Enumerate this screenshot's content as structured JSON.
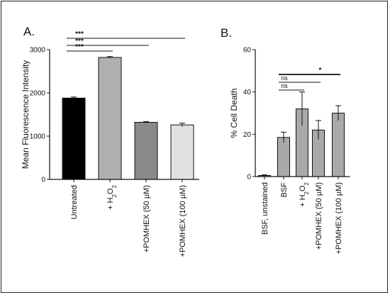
{
  "chart_data": [
    {
      "type": "bar",
      "panel": "A.",
      "ylabel": "Mean Fluorescence Intensity",
      "ylim": [
        0,
        3000
      ],
      "yticks": [
        0,
        1000,
        2000,
        3000
      ],
      "categories": [
        "Untreated",
        "+ H2O2",
        "+POMHEX (50 µM)",
        "+POMHEX (100 µM)"
      ],
      "values": [
        1880,
        2820,
        1320,
        1260
      ],
      "errors": [
        25,
        20,
        15,
        40
      ],
      "colors": [
        "#000000",
        "#b0b0b3",
        "#898989",
        "#e2e2e2"
      ],
      "significance": [
        {
          "from": 0,
          "to": 1,
          "label": "***"
        },
        {
          "from": 0,
          "to": 2,
          "label": "***"
        },
        {
          "from": 0,
          "to": 3,
          "label": "***"
        }
      ]
    },
    {
      "type": "bar",
      "panel": "B.",
      "ylabel": "% Cell Death",
      "ylim": [
        0,
        60
      ],
      "yticks": [
        0,
        20,
        40,
        60
      ],
      "categories": [
        "BSF, unstained",
        "BSF",
        "+ H2O2",
        "+POMHEX (50 µM)",
        "+POMHEX (100 µM)"
      ],
      "values": [
        0.5,
        18.5,
        32,
        22,
        30
      ],
      "errors": [
        0.3,
        2.5,
        8,
        4.5,
        3.5
      ],
      "colors": [
        "#a9a9a9",
        "#a9a9a9",
        "#a9a9a9",
        "#a9a9a9",
        "#a9a9a9"
      ],
      "significance": [
        {
          "from": 1,
          "to": 2,
          "label": "ns"
        },
        {
          "from": 1,
          "to": 3,
          "label": "ns"
        },
        {
          "from": 1,
          "to": 4,
          "label": "*"
        }
      ]
    }
  ]
}
